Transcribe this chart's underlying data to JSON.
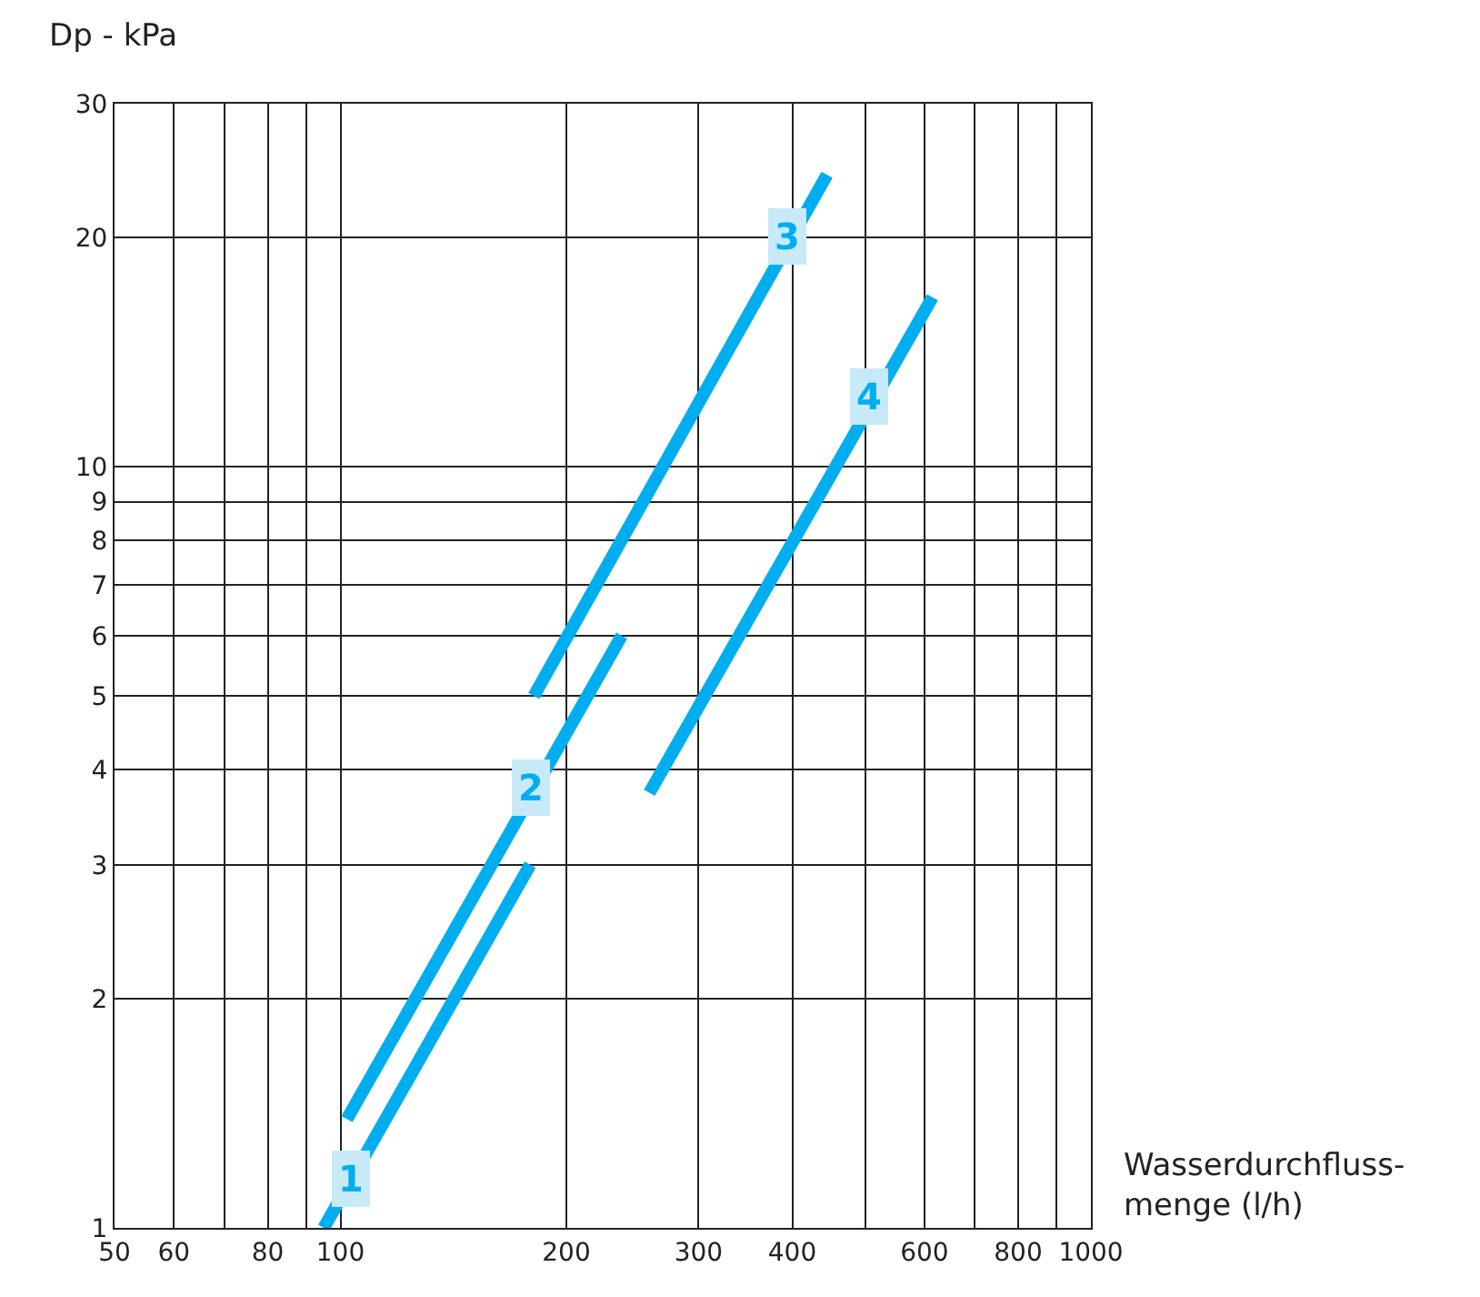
{
  "chart_data": {
    "type": "line",
    "xlabel": "Wasserdurchfluss-\nmenge (l/h)",
    "ylabel": "Dp - kPa",
    "log": "xy",
    "grid": true,
    "marker": "none",
    "line_style": "solid",
    "xlim": [
      50,
      1000
    ],
    "ylim": [
      1,
      30
    ],
    "xticks": [
      50,
      60,
      {
        "value": 70,
        "label": null
      },
      80,
      {
        "value": 90,
        "label": null
      },
      100,
      200,
      300,
      400,
      {
        "value": 500,
        "label": null
      },
      600,
      {
        "value": 700,
        "label": null
      },
      800,
      {
        "value": 900,
        "label": null
      },
      1000
    ],
    "yticks": [
      1,
      2,
      3,
      4,
      5,
      6,
      7,
      8,
      9,
      10,
      20,
      30
    ],
    "series": [
      {
        "color": "#00aeef",
        "x": [
          95,
          179
        ],
        "values": [
          1.0,
          3.0
        ]
      },
      {
        "color": "#00aeef",
        "x": [
          102,
          237
        ],
        "values": [
          1.39,
          6.0
        ]
      },
      {
        "color": "#00aeef",
        "x": [
          181,
          445
        ],
        "values": [
          5.0,
          24.2
        ]
      },
      {
        "color": "#00aeef",
        "x": [
          258,
          615
        ],
        "values": [
          3.73,
          16.7
        ]
      }
    ],
    "annotations": [
      {
        "text": "1",
        "x": 103,
        "y": 1.16
      },
      {
        "text": "2",
        "x": 179,
        "y": 3.79
      },
      {
        "text": "3",
        "x": 394,
        "y": 20.1
      },
      {
        "text": "4",
        "x": 506,
        "y": 12.4
      }
    ]
  }
}
